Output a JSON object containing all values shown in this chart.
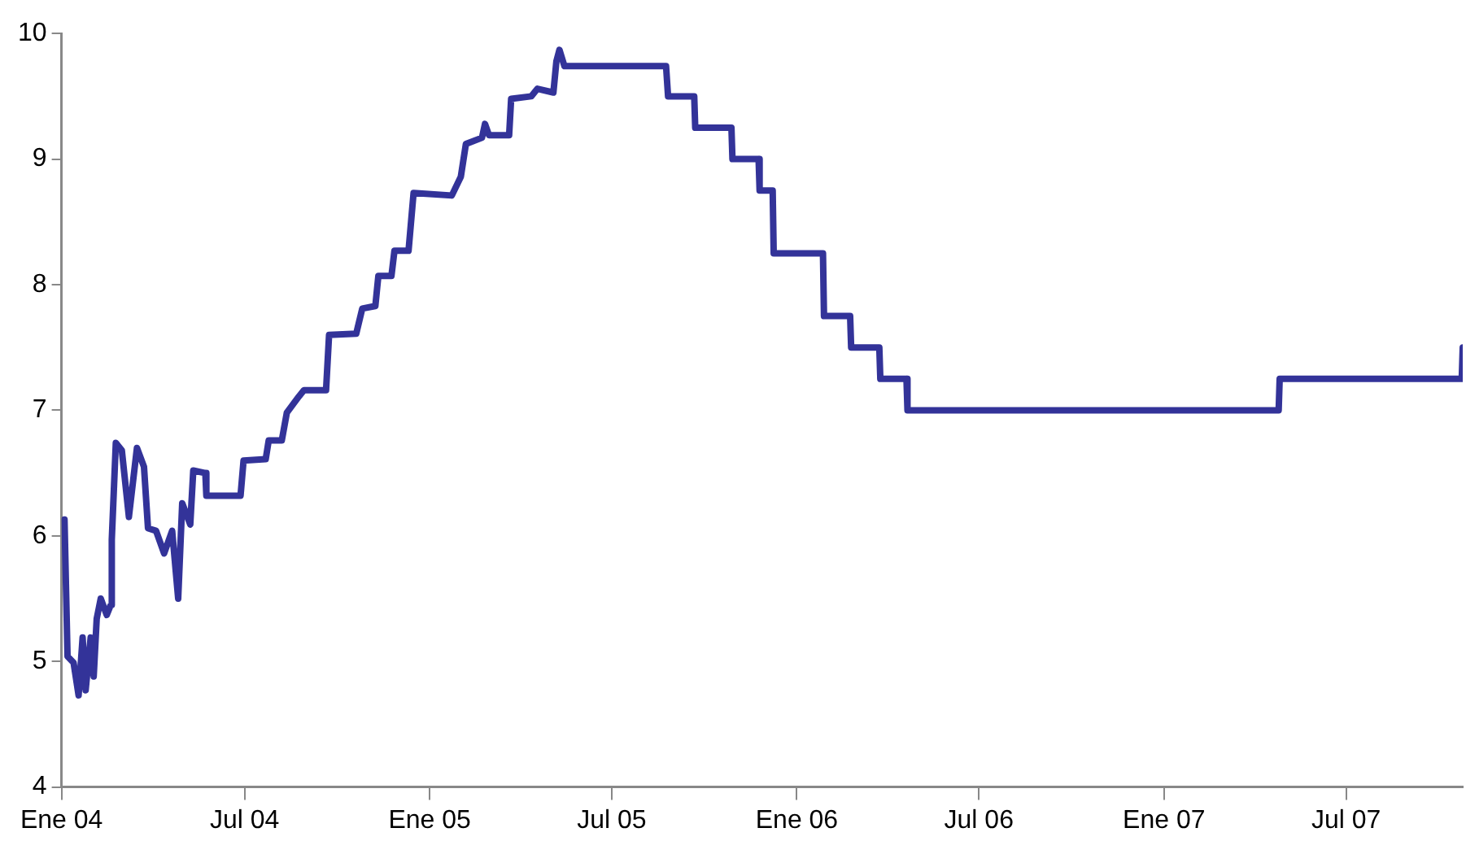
{
  "chart_data": {
    "type": "line",
    "x": [
      "2004-01-04",
      "2004-01-07",
      "2004-01-13",
      "2004-01-18",
      "2004-01-22",
      "2004-01-25",
      "2004-01-30",
      "2004-02-02",
      "2004-02-05",
      "2004-02-09",
      "2004-02-15",
      "2004-02-19",
      "2004-02-20",
      "2004-02-24",
      "2004-03-01",
      "2004-03-08",
      "2004-03-16",
      "2004-03-23",
      "2004-03-27",
      "2004-04-04",
      "2004-04-12",
      "2004-04-20",
      "2004-04-26",
      "2004-04-30",
      "2004-05-08",
      "2004-05-11",
      "2004-05-23",
      "2004-05-24",
      "2004-06-27",
      "2004-06-30",
      "2004-07-22",
      "2004-07-25",
      "2004-08-07",
      "2004-08-12",
      "2004-08-24",
      "2004-08-29",
      "2004-09-20",
      "2004-09-23",
      "2004-10-20",
      "2004-10-26",
      "2004-11-08",
      "2004-11-11",
      "2004-11-24",
      "2004-11-27",
      "2004-12-11",
      "2004-12-16",
      "2005-01-23",
      "2005-02-01",
      "2005-02-06",
      "2005-02-22",
      "2005-02-25",
      "2005-03-01",
      "2005-03-21",
      "2005-03-23",
      "2005-04-12",
      "2005-04-18",
      "2005-05-04",
      "2005-05-07",
      "2005-05-10",
      "2005-05-15",
      "2005-08-24",
      "2005-08-26",
      "2005-09-21",
      "2005-09-22",
      "2005-10-28",
      "2005-10-29",
      "2005-11-24",
      "2005-11-25",
      "2005-12-08",
      "2005-12-09",
      "2006-01-27",
      "2006-01-28",
      "2006-02-23",
      "2006-02-24",
      "2006-03-24",
      "2006-03-25",
      "2006-04-20",
      "2006-04-21",
      "2007-04-25",
      "2007-04-26",
      "2007-10-24",
      "2007-10-25"
    ],
    "series": [
      {
        "color": "#333399",
        "values": [
          6.13,
          5.04,
          4.99,
          4.73,
          5.19,
          4.77,
          5.19,
          4.88,
          5.34,
          5.5,
          5.37,
          5.45,
          5.97,
          6.74,
          6.68,
          6.15,
          6.7,
          6.55,
          6.06,
          6.04,
          5.86,
          6.04,
          5.5,
          6.26,
          6.09,
          6.52,
          6.5,
          6.32,
          6.32,
          6.6,
          6.61,
          6.76,
          6.76,
          6.98,
          7.11,
          7.16,
          7.16,
          7.6,
          7.61,
          7.81,
          7.83,
          8.07,
          8.07,
          8.27,
          8.27,
          8.73,
          8.71,
          8.86,
          9.12,
          9.17,
          9.28,
          9.19,
          9.19,
          9.48,
          9.5,
          9.56,
          9.53,
          9.78,
          9.87,
          9.74,
          9.74,
          9.5,
          9.5,
          9.25,
          9.25,
          9.0,
          9.0,
          8.75,
          8.75,
          8.25,
          8.25,
          7.75,
          7.75,
          7.5,
          7.5,
          7.25,
          7.25,
          7.0,
          7.0,
          7.25,
          7.25,
          7.5
        ]
      }
    ],
    "xlim": [
      "2004-01-01",
      "2007-10-25"
    ],
    "xticks": [
      {
        "value": "2004-01",
        "label": "Ene 04"
      },
      {
        "value": "2004-07",
        "label": "Jul 04"
      },
      {
        "value": "2005-01",
        "label": "Ene 05"
      },
      {
        "value": "2005-07",
        "label": "Jul 05"
      },
      {
        "value": "2006-01",
        "label": "Ene 06"
      },
      {
        "value": "2006-07",
        "label": "Jul 06"
      },
      {
        "value": "2007-01",
        "label": "Ene 07"
      },
      {
        "value": "2007-07",
        "label": "Jul 07"
      }
    ],
    "ylim": [
      4,
      10
    ],
    "yticks": [
      4,
      5,
      6,
      7,
      8,
      9,
      10
    ]
  }
}
